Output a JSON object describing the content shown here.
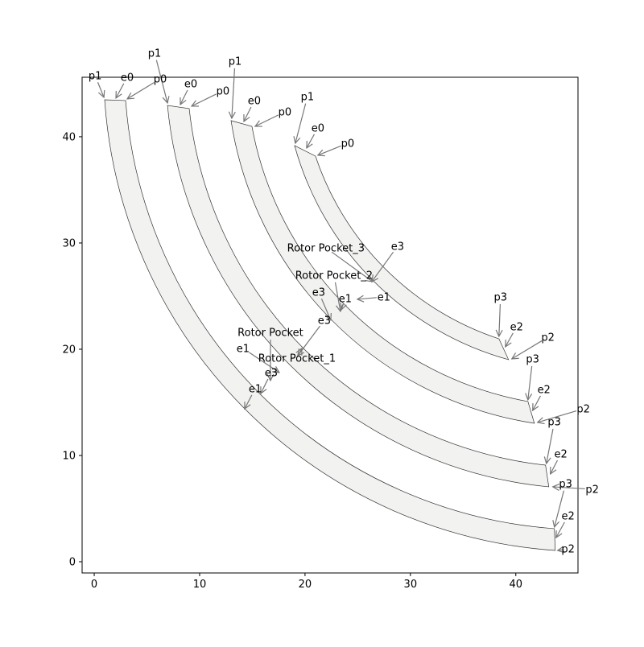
{
  "chart_data": {
    "type": "diagram-plot",
    "title": "",
    "xlabel": "",
    "ylabel": "",
    "xlim": [
      -1.15,
      45.9
    ],
    "ylim": [
      -1.06,
      45.6
    ],
    "xticks": [
      0,
      10,
      20,
      30,
      40
    ],
    "yticks": [
      0,
      10,
      20,
      30,
      40
    ],
    "grid": false,
    "colors": {
      "fill": "#f2f2f0",
      "edge": "#333333",
      "arrow": "#777777"
    },
    "pocket_center": [
      47,
      47
    ],
    "pockets": [
      {
        "r_inner": 44.0,
        "r_outer": 46.0,
        "p0": [
          2.98,
          43.41
        ],
        "p1": [
          0.99,
          43.48
        ],
        "p2": [
          43.74,
          1.06
        ],
        "p3": [
          43.66,
          3.11
        ]
      },
      {
        "r_inner": 38.2,
        "r_outer": 40.2,
        "p0": [
          9.01,
          42.65
        ],
        "p1": [
          6.95,
          42.95
        ],
        "p2": [
          43.13,
          7.05
        ],
        "p3": [
          42.82,
          9.09
        ]
      },
      {
        "r_inner": 32.5,
        "r_outer": 34.4,
        "p0": [
          14.96,
          40.98
        ],
        "p1": [
          12.98,
          41.52
        ],
        "p2": [
          41.76,
          13.03
        ],
        "p3": [
          41.15,
          15.08
        ]
      },
      {
        "r_inner": 27.4,
        "r_outer": 29.1,
        "p0": [
          20.99,
          38.18
        ],
        "p1": [
          19.01,
          39.17
        ],
        "p2": [
          39.31,
          19.02
        ],
        "p3": [
          38.4,
          20.98
        ]
      }
    ],
    "annotations": [
      {
        "text": "p1",
        "xytext": [
          0.08,
          45.76
        ],
        "xy": [
          0.92,
          43.71
        ]
      },
      {
        "text": "e0",
        "xytext": [
          3.13,
          45.61
        ],
        "xy": [
          2.06,
          43.64
        ]
      },
      {
        "text": "p0",
        "xytext": [
          6.26,
          45.45
        ],
        "xy": [
          3.13,
          43.56
        ]
      },
      {
        "text": "p3",
        "xytext": [
          44.73,
          7.35
        ],
        "xy": [
          43.66,
          3.26
        ]
      },
      {
        "text": "e2",
        "xytext": [
          44.96,
          4.32
        ],
        "xy": [
          43.82,
          2.27
        ]
      },
      {
        "text": "p2",
        "xytext": [
          44.96,
          1.21
        ],
        "xy": [
          43.97,
          1.06
        ]
      },
      {
        "text": "e1",
        "xytext": [
          15.27,
          16.29
        ],
        "xy": [
          14.27,
          14.39
        ]
      },
      {
        "text": "e3",
        "xytext": [
          16.79,
          17.8
        ],
        "xy": [
          15.8,
          15.83
        ]
      },
      {
        "text": "p1",
        "xytext": [
          5.73,
          47.88
        ],
        "xy": [
          6.95,
          43.18
        ]
      },
      {
        "text": "e0",
        "xytext": [
          9.16,
          45.0
        ],
        "xy": [
          8.17,
          43.03
        ]
      },
      {
        "text": "p0",
        "xytext": [
          12.21,
          44.32
        ],
        "xy": [
          9.24,
          42.88
        ]
      },
      {
        "text": "p3",
        "xytext": [
          43.66,
          13.18
        ],
        "xy": [
          42.9,
          9.24
        ]
      },
      {
        "text": "e2",
        "xytext": [
          44.27,
          10.15
        ],
        "xy": [
          43.28,
          8.26
        ]
      },
      {
        "text": "p2",
        "xytext": [
          47.25,
          6.82
        ],
        "xy": [
          43.51,
          7.05
        ]
      },
      {
        "text": "e1",
        "xytext": [
          16.26,
          20.08
        ],
        "xy": [
          17.56,
          17.8
        ]
      },
      {
        "text": "e3",
        "xytext": [
          21.83,
          22.73
        ],
        "xy": [
          19.31,
          19.39
        ]
      },
      {
        "text": "p1",
        "xytext": [
          13.36,
          47.12
        ],
        "xy": [
          13.05,
          41.74
        ]
      },
      {
        "text": "e0",
        "xytext": [
          15.19,
          43.41
        ],
        "xy": [
          14.2,
          41.44
        ]
      },
      {
        "text": "p0",
        "xytext": [
          18.09,
          42.35
        ],
        "xy": [
          15.27,
          40.98
        ]
      },
      {
        "text": "p3",
        "xytext": [
          41.6,
          19.09
        ],
        "xy": [
          41.15,
          15.23
        ]
      },
      {
        "text": "e2",
        "xytext": [
          42.67,
          16.21
        ],
        "xy": [
          41.6,
          14.24
        ]
      },
      {
        "text": "p2",
        "xytext": [
          46.41,
          14.39
        ],
        "xy": [
          42.06,
          13.11
        ]
      },
      {
        "text": "e3",
        "xytext": [
          21.3,
          26.59
        ],
        "xy": [
          22.44,
          22.73
        ]
      },
      {
        "text": "e1",
        "xytext": [
          23.82,
          24.77
        ],
        "xy": [
          23.44,
          23.71
        ]
      },
      {
        "text": "p1",
        "xytext": [
          20.23,
          43.79
        ],
        "xy": [
          19.08,
          39.39
        ]
      },
      {
        "text": "e0",
        "xytext": [
          21.22,
          40.83
        ],
        "xy": [
          20.15,
          38.94
        ]
      },
      {
        "text": "p0",
        "xytext": [
          24.05,
          39.39
        ],
        "xy": [
          21.22,
          38.26
        ]
      },
      {
        "text": "p3",
        "xytext": [
          38.55,
          24.92
        ],
        "xy": [
          38.4,
          21.21
        ]
      },
      {
        "text": "e2",
        "xytext": [
          40.08,
          22.12
        ],
        "xy": [
          39.01,
          20.23
        ]
      },
      {
        "text": "p2",
        "xytext": [
          43.05,
          21.14
        ],
        "xy": [
          39.62,
          19.09
        ]
      },
      {
        "text": "e3",
        "xytext": [
          28.78,
          29.7
        ],
        "xy": [
          26.34,
          26.36
        ]
      },
      {
        "text": "e1",
        "xytext": [
          27.48,
          24.92
        ],
        "xy": [
          24.96,
          24.7
        ]
      },
      {
        "text": "Rotor Pocket",
        "xytext": [
          16.72,
          20.38
        ],
        "xy": [
          16.72,
          17.05
        ]
      },
      {
        "text": "Rotor Pocket_1",
        "xytext": [
          19.24,
          19.17
        ],
        "xy": [
          19.69,
          20.08
        ]
      },
      {
        "text": "Rotor Pocket_2",
        "xytext": [
          22.75,
          26.97
        ],
        "xy": [
          23.36,
          23.56
        ]
      },
      {
        "text": "Rotor Pocket_3",
        "xytext": [
          21.98,
          29.55
        ],
        "xy": [
          26.41,
          26.36
        ]
      }
    ]
  }
}
